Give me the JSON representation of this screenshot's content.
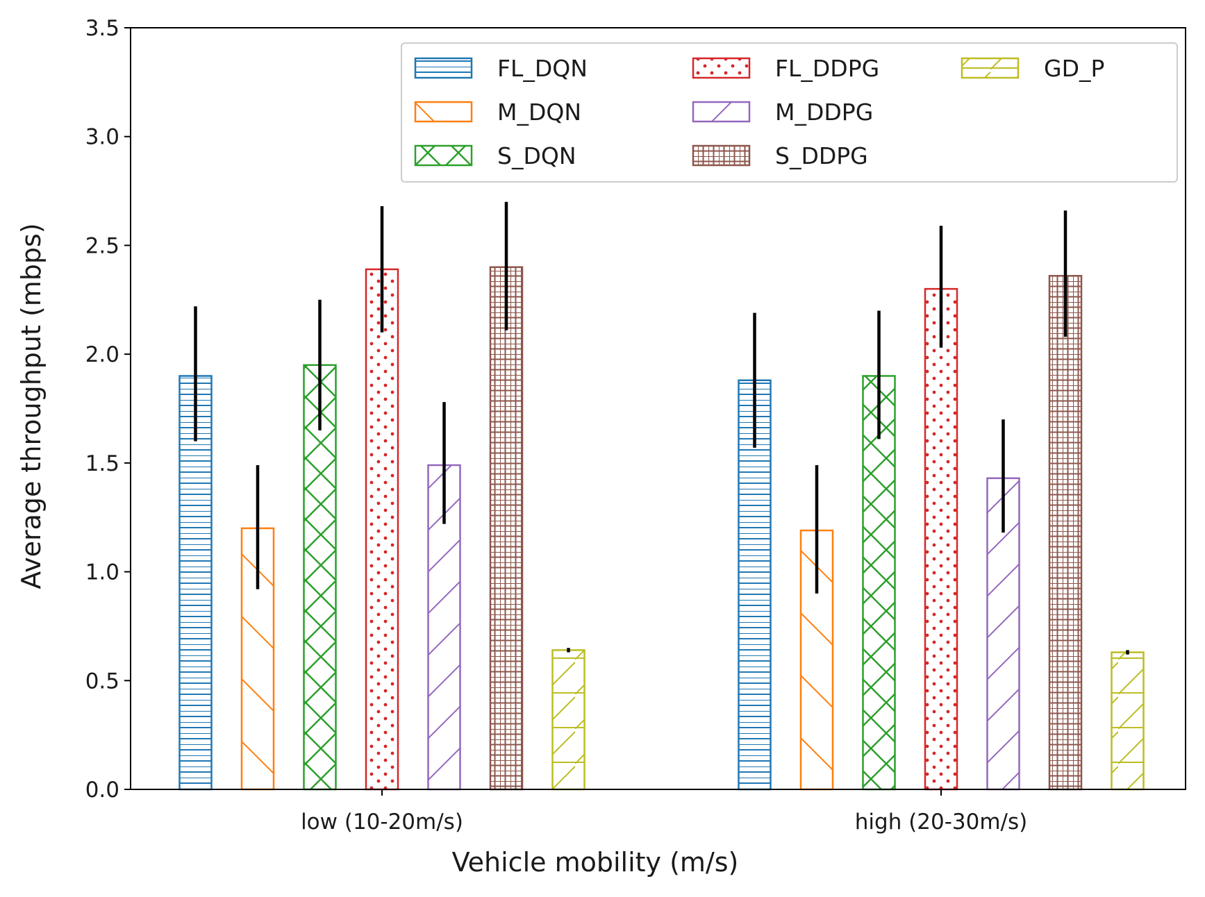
{
  "chart_data": {
    "type": "bar",
    "title": "",
    "xlabel": "Vehicle mobility (m/s)",
    "ylabel": "Average throughput (mbps)",
    "ylim": [
      0,
      3.5
    ],
    "yticks": [
      "0.0",
      "0.5",
      "1.0",
      "1.5",
      "2.0",
      "2.5",
      "3.0",
      "3.5"
    ],
    "categories": [
      "low (10-20m/s)",
      "high (20-30m/s)"
    ],
    "legend_position": "top-right",
    "series": [
      {
        "name": "FL_DQN",
        "color": "#1f77b4",
        "hatch": "horizontal",
        "values": [
          1.9,
          1.88
        ],
        "err_low": [
          1.6,
          1.57
        ],
        "err_high": [
          2.22,
          2.19
        ]
      },
      {
        "name": "M_DQN",
        "color": "#ff7f0e",
        "hatch": "backslash",
        "values": [
          1.2,
          1.19
        ],
        "err_low": [
          0.92,
          0.9
        ],
        "err_high": [
          1.49,
          1.49
        ]
      },
      {
        "name": "S_DQN",
        "color": "#2ca02c",
        "hatch": "cross",
        "values": [
          1.95,
          1.9
        ],
        "err_low": [
          1.65,
          1.61
        ],
        "err_high": [
          2.25,
          2.2
        ]
      },
      {
        "name": "FL_DDPG",
        "color": "#d62728",
        "hatch": "dots",
        "values": [
          2.39,
          2.3
        ],
        "err_low": [
          2.1,
          2.03
        ],
        "err_high": [
          2.68,
          2.59
        ]
      },
      {
        "name": "M_DDPG",
        "color": "#9467bd",
        "hatch": "slash",
        "values": [
          1.49,
          1.43
        ],
        "err_low": [
          1.22,
          1.18
        ],
        "err_high": [
          1.78,
          1.7
        ]
      },
      {
        "name": "S_DDPG",
        "color": "#8c564b",
        "hatch": "grid",
        "values": [
          2.4,
          2.36
        ],
        "err_low": [
          2.11,
          2.08
        ],
        "err_high": [
          2.7,
          2.66
        ]
      },
      {
        "name": "GD_P",
        "color": "#bcbd22",
        "hatch": "hslash",
        "values": [
          0.64,
          0.63
        ],
        "err_low": [
          0.63,
          0.62
        ],
        "err_high": [
          0.65,
          0.64
        ]
      }
    ],
    "legend_order": [
      "FL_DQN",
      "M_DQN",
      "S_DQN",
      "FL_DDPG",
      "M_DDPG",
      "S_DDPG",
      "GD_P"
    ]
  }
}
